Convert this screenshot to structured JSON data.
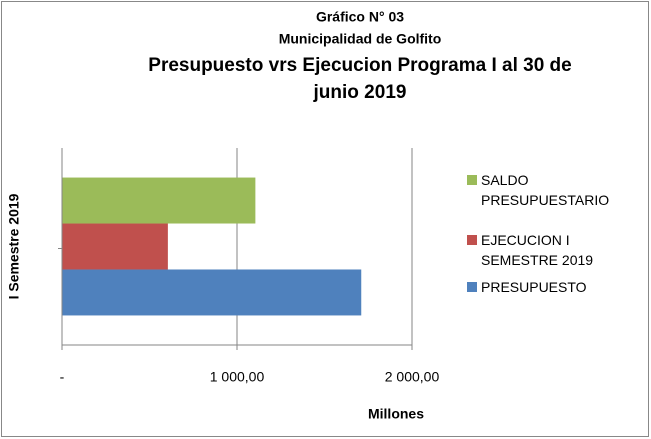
{
  "chart_data": {
    "type": "barh",
    "supertitle": [
      "Gráfico N° 03",
      "Municipalidad de Golfito"
    ],
    "title": [
      "Presupuesto vrs Ejecucion  Programa I al 30 de",
      "junio 2019"
    ],
    "categories": [
      "I Semestre 2019"
    ],
    "series": [
      {
        "name": "PRESUPUESTO",
        "color": "#4f81bd",
        "values": [
          1710
        ]
      },
      {
        "name": "EJECUCION I SEMESTRE 2019",
        "color": "#c0504d",
        "values": [
          605
        ]
      },
      {
        "name": "SALDO PRESUPUESTARIO",
        "color": "#9bbb59",
        "values": [
          1105
        ]
      }
    ],
    "xlabel": "Millones",
    "xlim": [
      0,
      2000
    ],
    "xticks": [
      {
        "value": 0,
        "label": "-"
      },
      {
        "value": 1000,
        "label": "1 000,00"
      },
      {
        "value": 2000,
        "label": "2 000,00"
      }
    ],
    "grid": true,
    "legend": "right"
  }
}
